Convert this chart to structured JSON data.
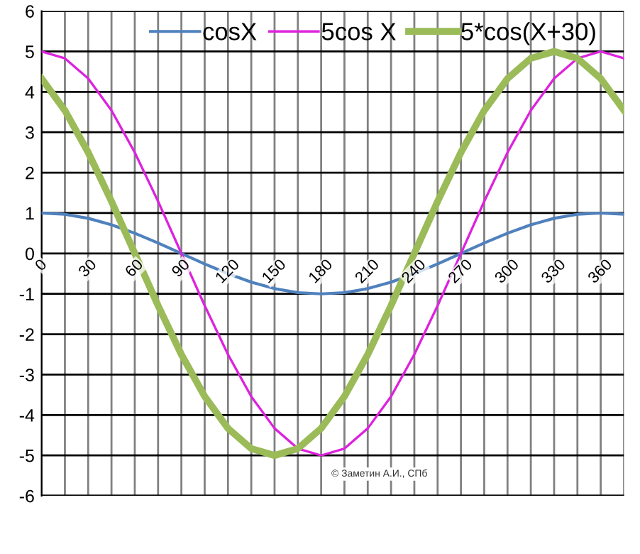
{
  "chart_data": {
    "type": "line",
    "categories": [
      "0",
      null,
      "30",
      null,
      "60",
      null,
      "90",
      null,
      "120",
      null,
      "150",
      null,
      "180",
      null,
      "210",
      null,
      "240",
      null,
      "270",
      null,
      "300",
      null,
      "330",
      null,
      "360",
      null
    ],
    "series": [
      {
        "name": "cosX",
        "color": "#4f81bd",
        "values": [
          1,
          0.97,
          0.87,
          0.71,
          0.5,
          0.26,
          0,
          -0.26,
          -0.5,
          -0.71,
          -0.87,
          -0.97,
          -1,
          -0.97,
          -0.87,
          -0.71,
          -0.5,
          -0.26,
          0,
          0.26,
          0.5,
          0.71,
          0.87,
          0.97,
          1,
          0.97
        ]
      },
      {
        "name": "5cos X",
        "color": "#dd22dd",
        "values": [
          5,
          4.83,
          4.33,
          3.54,
          2.5,
          1.29,
          0,
          -1.29,
          -2.5,
          -3.54,
          -4.33,
          -4.83,
          -5,
          -4.83,
          -4.33,
          -3.54,
          -2.5,
          -1.29,
          0,
          1.29,
          2.5,
          3.54,
          4.33,
          4.83,
          5,
          4.83
        ]
      },
      {
        "name": "5*cos(X+30)",
        "color": "#9bbb59",
        "values": [
          4.33,
          3.54,
          2.5,
          1.29,
          0,
          -1.29,
          -2.5,
          -3.54,
          -4.33,
          -4.83,
          -5,
          -4.83,
          -4.33,
          -3.54,
          -2.5,
          -1.29,
          0,
          1.29,
          2.5,
          3.54,
          4.33,
          4.83,
          5,
          4.83,
          4.33,
          3.54
        ]
      }
    ],
    "ylim": [
      -6,
      6
    ],
    "yticks": [
      -6,
      -5,
      -4,
      -3,
      -2,
      -1,
      0,
      1,
      2,
      3,
      4,
      5,
      6
    ],
    "grid": true,
    "legend": "top",
    "marker": "none",
    "line_style": "solid",
    "annotations": [
      "© Заметин А.И., СПб"
    ]
  }
}
